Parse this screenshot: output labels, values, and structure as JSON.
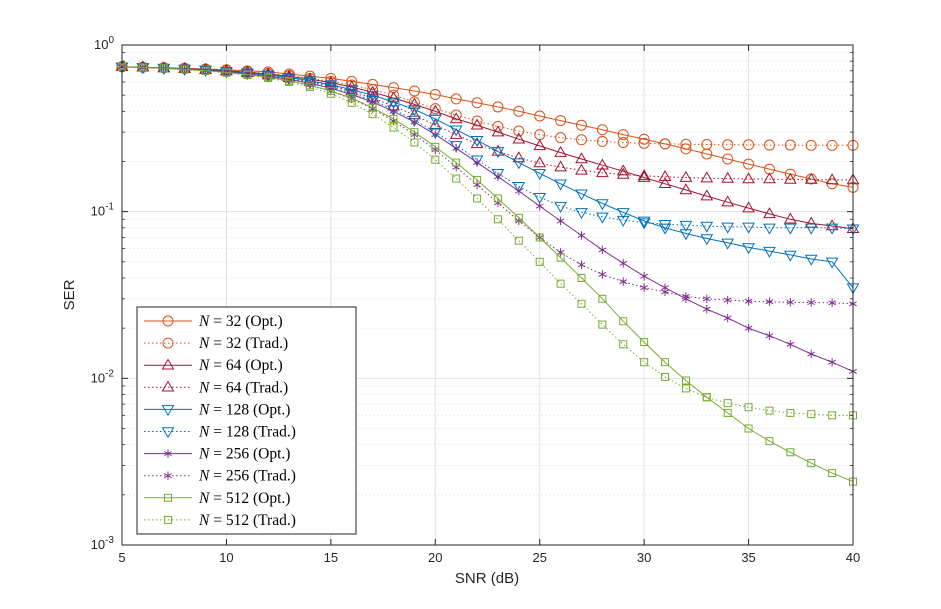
{
  "chart_data": {
    "type": "line",
    "title": "",
    "xlabel": "SNR (dB)",
    "ylabel": "SER",
    "x": [
      5,
      6,
      7,
      8,
      9,
      10,
      11,
      12,
      13,
      14,
      15,
      16,
      17,
      18,
      19,
      20,
      21,
      22,
      23,
      24,
      25,
      26,
      27,
      28,
      29,
      30,
      31,
      32,
      33,
      34,
      35,
      36,
      37,
      38,
      39,
      40
    ],
    "xlim": [
      5,
      40
    ],
    "ylim": [
      0.001,
      1
    ],
    "yscale": "log",
    "xticks": [
      "5",
      "10",
      "15",
      "20",
      "25",
      "30",
      "35",
      "40"
    ],
    "yticks": [
      {
        "base": "10",
        "exp": "0"
      },
      {
        "base": "10",
        "exp": "-1"
      },
      {
        "base": "10",
        "exp": "-2"
      },
      {
        "base": "10",
        "exp": "-3"
      }
    ],
    "grid": true,
    "legend_position": "bottom-left",
    "colors": {
      "N32": "#D95319",
      "N64": "#A2142F",
      "N128": "#0072BD",
      "N256": "#7E2F8E",
      "N512": "#77AC30",
      "axis": "#262626",
      "grid": "#e1e1e1"
    },
    "series": [
      {
        "label": "N = 32 (Opt.)",
        "n_label": "N",
        "eq": " = 32 (Opt.)",
        "color": "#D95319",
        "marker": "circle",
        "dash": "solid",
        "values": [
          0.74,
          0.735,
          0.73,
          0.725,
          0.718,
          0.71,
          0.7,
          0.69,
          0.67,
          0.65,
          0.63,
          0.605,
          0.58,
          0.555,
          0.53,
          0.505,
          0.475,
          0.45,
          0.425,
          0.4,
          0.375,
          0.352,
          0.33,
          0.31,
          0.29,
          0.272,
          0.255,
          0.238,
          0.222,
          0.207,
          0.193,
          0.18,
          0.168,
          0.157,
          0.147,
          0.14
        ]
      },
      {
        "label": "N = 32 (Trad.)",
        "n_label": "N",
        "eq": " = 32 (Trad.)",
        "color": "#D95319",
        "marker": "circle",
        "dash": "dotted",
        "values": [
          0.74,
          0.735,
          0.73,
          0.722,
          0.713,
          0.703,
          0.69,
          0.675,
          0.655,
          0.63,
          0.605,
          0.575,
          0.54,
          0.5,
          0.455,
          0.415,
          0.38,
          0.35,
          0.325,
          0.305,
          0.29,
          0.278,
          0.27,
          0.264,
          0.26,
          0.257,
          0.255,
          0.254,
          0.253,
          0.252,
          0.252,
          0.251,
          0.251,
          0.25,
          0.25,
          0.25
        ]
      },
      {
        "label": "N = 64 (Opt.)",
        "n_label": "N",
        "eq": " = 64 (Opt.)",
        "color": "#A2142F",
        "marker": "triangle-up",
        "dash": "solid",
        "values": [
          0.74,
          0.735,
          0.728,
          0.72,
          0.712,
          0.7,
          0.686,
          0.67,
          0.648,
          0.624,
          0.595,
          0.56,
          0.52,
          0.48,
          0.44,
          0.4,
          0.36,
          0.33,
          0.3,
          0.272,
          0.248,
          0.226,
          0.207,
          0.19,
          0.175,
          0.16,
          0.147,
          0.135,
          0.124,
          0.114,
          0.105,
          0.097,
          0.09,
          0.085,
          0.082,
          0.079
        ]
      },
      {
        "label": "N = 64 (Trad.)",
        "n_label": "N",
        "eq": " = 64 (Trad.)",
        "color": "#A2142F",
        "marker": "triangle-up",
        "dash": "dotted",
        "values": [
          0.74,
          0.735,
          0.728,
          0.72,
          0.71,
          0.697,
          0.68,
          0.66,
          0.635,
          0.605,
          0.57,
          0.53,
          0.48,
          0.43,
          0.38,
          0.33,
          0.29,
          0.255,
          0.23,
          0.21,
          0.196,
          0.185,
          0.177,
          0.171,
          0.167,
          0.164,
          0.162,
          0.16,
          0.159,
          0.158,
          0.157,
          0.157,
          0.156,
          0.156,
          0.155,
          0.155
        ]
      },
      {
        "label": "N = 128 (Opt.)",
        "n_label": "N",
        "eq": " = 128 (Opt.)",
        "color": "#0072BD",
        "marker": "triangle-down",
        "dash": "solid",
        "values": [
          0.74,
          0.734,
          0.727,
          0.718,
          0.708,
          0.695,
          0.68,
          0.662,
          0.638,
          0.61,
          0.578,
          0.54,
          0.5,
          0.455,
          0.41,
          0.36,
          0.31,
          0.268,
          0.23,
          0.197,
          0.17,
          0.147,
          0.128,
          0.112,
          0.099,
          0.088,
          0.08,
          0.074,
          0.069,
          0.065,
          0.061,
          0.058,
          0.055,
          0.052,
          0.05,
          0.035
        ]
      },
      {
        "label": "N = 128 (Trad.)",
        "n_label": "N",
        "eq": " = 128 (Trad.)",
        "color": "#0072BD",
        "marker": "triangle-down",
        "dash": "dotted",
        "values": [
          0.74,
          0.734,
          0.727,
          0.718,
          0.707,
          0.692,
          0.675,
          0.654,
          0.628,
          0.597,
          0.56,
          0.515,
          0.465,
          0.41,
          0.355,
          0.3,
          0.25,
          0.205,
          0.17,
          0.142,
          0.122,
          0.108,
          0.099,
          0.093,
          0.089,
          0.086,
          0.084,
          0.083,
          0.082,
          0.081,
          0.081,
          0.08,
          0.08,
          0.08,
          0.08,
          0.079
        ]
      },
      {
        "label": "N = 256 (Opt.)",
        "n_label": "N",
        "eq": " = 256 (Opt.)",
        "color": "#7E2F8E",
        "marker": "asterisk",
        "dash": "solid",
        "values": [
          0.74,
          0.734,
          0.726,
          0.716,
          0.704,
          0.69,
          0.672,
          0.65,
          0.623,
          0.59,
          0.55,
          0.505,
          0.455,
          0.4,
          0.345,
          0.29,
          0.24,
          0.197,
          0.162,
          0.133,
          0.108,
          0.088,
          0.072,
          0.059,
          0.049,
          0.041,
          0.035,
          0.03,
          0.026,
          0.023,
          0.02,
          0.018,
          0.016,
          0.014,
          0.0125,
          0.011
        ]
      },
      {
        "label": "N = 256 (Trad.)",
        "n_label": "N",
        "eq": " = 256 (Trad.)",
        "color": "#7E2F8E",
        "marker": "asterisk",
        "dash": "dotted",
        "values": [
          0.74,
          0.733,
          0.725,
          0.714,
          0.701,
          0.685,
          0.665,
          0.64,
          0.61,
          0.575,
          0.53,
          0.475,
          0.415,
          0.35,
          0.29,
          0.235,
          0.185,
          0.145,
          0.113,
          0.088,
          0.07,
          0.057,
          0.048,
          0.042,
          0.038,
          0.035,
          0.033,
          0.031,
          0.03,
          0.0295,
          0.029,
          0.0288,
          0.0286,
          0.0285,
          0.0284,
          0.028
        ]
      },
      {
        "label": "N = 512 (Opt.)",
        "n_label": "N",
        "eq": " = 512 (Opt.)",
        "color": "#77AC30",
        "marker": "square",
        "dash": "solid",
        "values": [
          0.74,
          0.733,
          0.725,
          0.714,
          0.701,
          0.685,
          0.665,
          0.64,
          0.61,
          0.573,
          0.53,
          0.48,
          0.42,
          0.36,
          0.3,
          0.245,
          0.197,
          0.155,
          0.12,
          0.092,
          0.07,
          0.053,
          0.04,
          0.03,
          0.022,
          0.0165,
          0.0125,
          0.0097,
          0.0077,
          0.0062,
          0.005,
          0.0042,
          0.0036,
          0.0031,
          0.0027,
          0.0024
        ]
      },
      {
        "label": "N = 512 (Trad.)",
        "n_label": "N",
        "eq": " = 512 (Trad.)",
        "color": "#77AC30",
        "marker": "square",
        "dash": "dotted",
        "values": [
          0.74,
          0.733,
          0.724,
          0.713,
          0.699,
          0.682,
          0.66,
          0.633,
          0.6,
          0.56,
          0.51,
          0.45,
          0.385,
          0.32,
          0.26,
          0.205,
          0.158,
          0.12,
          0.09,
          0.067,
          0.05,
          0.037,
          0.028,
          0.021,
          0.016,
          0.0125,
          0.0102,
          0.0087,
          0.0077,
          0.0071,
          0.0067,
          0.0064,
          0.0062,
          0.0061,
          0.006,
          0.006
        ]
      }
    ]
  }
}
